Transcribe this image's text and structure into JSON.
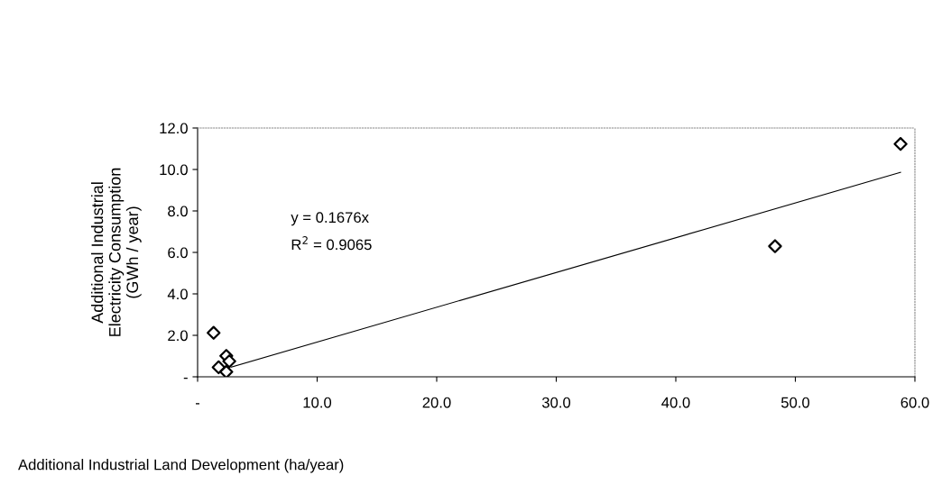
{
  "chart_data": {
    "type": "scatter",
    "xlabel": "Additional Industrial Land Development (ha/year)",
    "ylabel": "Additional Industrial\nElectricity Consumption\n(GWh / year)",
    "series": [
      {
        "color": "#000000",
        "marker": "diamond",
        "x": [
          1.34,
          1.76,
          2.4,
          2.65,
          2.4,
          48.3,
          58.8
        ],
        "values": [
          2.12,
          0.46,
          1.01,
          0.75,
          0.24,
          6.3,
          11.23
        ]
      },
      {
        "type": "line",
        "color": "#000000",
        "marker": "none",
        "line_style": "solid",
        "x": [
          2.8,
          58.8
        ],
        "values": [
          0.47,
          9.86
        ]
      }
    ],
    "annotations": [
      "y = 0.1676x",
      "R$^{2}$ = 0.9065"
    ],
    "xlim": [
      0,
      60
    ],
    "ylim": [
      0,
      12
    ],
    "xticks": [
      {
        "value": 0,
        "label": "-"
      },
      {
        "value": 10,
        "label": "10.0"
      },
      {
        "value": 20,
        "label": "20.0"
      },
      {
        "value": 30,
        "label": "30.0"
      },
      {
        "value": 40,
        "label": "40.0"
      },
      {
        "value": 50,
        "label": "50.0"
      },
      {
        "value": 60,
        "label": "60.0"
      }
    ],
    "yticks": [
      {
        "value": 0,
        "label": "-"
      },
      {
        "value": 2,
        "label": "2.0"
      },
      {
        "value": 4,
        "label": "4.0"
      },
      {
        "value": 6,
        "label": "6.0"
      },
      {
        "value": 8,
        "label": "8.0"
      },
      {
        "value": 10,
        "label": "10.0"
      },
      {
        "value": 12,
        "label": "12.0"
      }
    ],
    "grid": false,
    "legend": false
  }
}
